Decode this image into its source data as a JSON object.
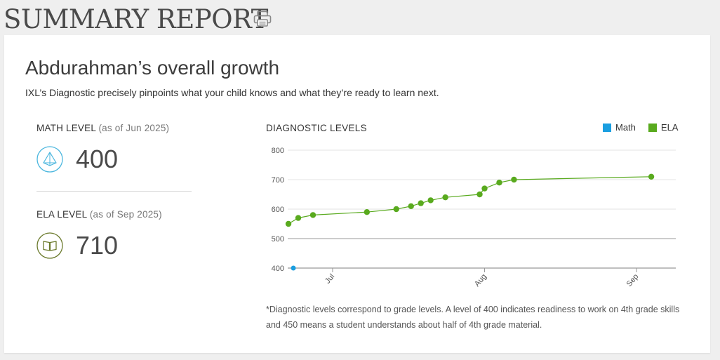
{
  "header": {
    "title": "SUMMARY REPORT",
    "print_icon": "printer-icon"
  },
  "growth": {
    "title": "Abdurahman’s overall growth",
    "subtitle": "IXL’s Diagnostic precisely pinpoints what your child knows and what they’re ready to learn next."
  },
  "math_level": {
    "label": "MATH LEVEL",
    "as_of": "(as of Jun 2025)",
    "value": "400",
    "icon": "pyramid-icon",
    "color": "#4ab6de"
  },
  "ela_level": {
    "label": "ELA LEVEL",
    "as_of": "(as of Sep 2025)",
    "value": "710",
    "icon": "book-icon",
    "color": "#6b7a2c"
  },
  "chart_title": "DIAGNOSTIC LEVELS",
  "legend": [
    {
      "name": "Math",
      "color": "#1a9ee0"
    },
    {
      "name": "ELA",
      "color": "#59aa1e"
    }
  ],
  "footnote": "*Diagnostic levels correspond to grade levels. A level of 400 indicates readiness to work on 4th grade skills and 450 means a student understands about half of 4th grade material.",
  "chart_data": {
    "type": "line",
    "title": "DIAGNOSTIC LEVELS",
    "xlabel": "",
    "ylabel": "",
    "x_axis": "date",
    "xlim": [
      "2025-06-22",
      "2025-09-09"
    ],
    "ylim": [
      400,
      800
    ],
    "yticks": [
      400,
      500,
      600,
      700,
      800
    ],
    "xticks": [
      {
        "date": "2025-07-01",
        "label": "Jul"
      },
      {
        "date": "2025-08-01",
        "label": "Aug"
      },
      {
        "date": "2025-09-01",
        "label": "Sep"
      }
    ],
    "grid": true,
    "legend_position": "top-right",
    "series": [
      {
        "name": "Math",
        "color": "#1a9ee0",
        "points": [
          {
            "x": "2025-06-23",
            "y": 400
          }
        ]
      },
      {
        "name": "ELA",
        "color": "#59aa1e",
        "points": [
          {
            "x": "2025-06-22",
            "y": 550
          },
          {
            "x": "2025-06-24",
            "y": 570
          },
          {
            "x": "2025-06-27",
            "y": 580
          },
          {
            "x": "2025-07-08",
            "y": 590
          },
          {
            "x": "2025-07-14",
            "y": 600
          },
          {
            "x": "2025-07-17",
            "y": 610
          },
          {
            "x": "2025-07-19",
            "y": 620
          },
          {
            "x": "2025-07-21",
            "y": 630
          },
          {
            "x": "2025-07-24",
            "y": 640
          },
          {
            "x": "2025-07-31",
            "y": 650
          },
          {
            "x": "2025-08-01",
            "y": 670
          },
          {
            "x": "2025-08-04",
            "y": 690
          },
          {
            "x": "2025-08-07",
            "y": 700
          },
          {
            "x": "2025-09-04",
            "y": 710
          }
        ]
      }
    ]
  }
}
